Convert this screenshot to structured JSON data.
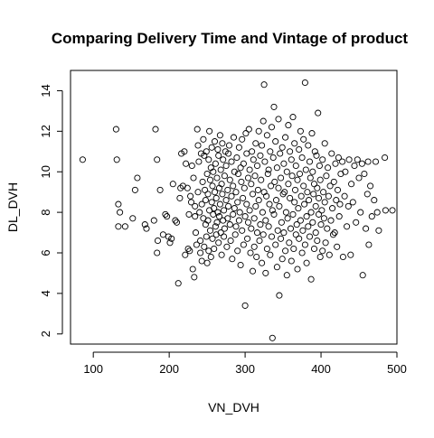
{
  "chart_data": {
    "type": "scatter",
    "title": "Comparing Delivery Time and Vintage of product",
    "xlabel": "VN_DVH",
    "ylabel": "DL_DVH",
    "xlim": [
      70,
      500
    ],
    "ylim": [
      1.5,
      15
    ],
    "x_ticks": [
      100,
      200,
      300,
      400,
      500
    ],
    "y_ticks": [
      2,
      4,
      6,
      8,
      10,
      12,
      14
    ],
    "grid": false,
    "legend": "none",
    "point_color": "#000000",
    "points": [
      [
        86,
        10.6
      ],
      [
        130,
        12.1
      ],
      [
        131,
        10.6
      ],
      [
        133,
        8.4
      ],
      [
        133,
        7.3
      ],
      [
        135,
        8.0
      ],
      [
        142,
        7.3
      ],
      [
        152,
        7.7
      ],
      [
        155,
        9.1
      ],
      [
        158,
        9.7
      ],
      [
        168,
        7.4
      ],
      [
        170,
        7.2
      ],
      [
        180,
        7.6
      ],
      [
        182,
        12.1
      ],
      [
        184,
        10.6
      ],
      [
        184,
        6.0
      ],
      [
        185,
        6.6
      ],
      [
        188,
        9.1
      ],
      [
        192,
        6.9
      ],
      [
        195,
        7.9
      ],
      [
        197,
        7.8
      ],
      [
        199,
        6.8
      ],
      [
        201,
        6.5
      ],
      [
        203,
        6.7
      ],
      [
        205,
        9.4
      ],
      [
        208,
        7.6
      ],
      [
        210,
        7.5
      ],
      [
        212,
        4.5
      ],
      [
        214,
        8.7
      ],
      [
        215,
        9.2
      ],
      [
        216,
        10.9
      ],
      [
        218,
        9.3
      ],
      [
        220,
        11.0
      ],
      [
        221,
        5.9
      ],
      [
        222,
        10.4
      ],
      [
        224,
        9.2
      ],
      [
        225,
        6.2
      ],
      [
        226,
        7.9
      ],
      [
        227,
        6.1
      ],
      [
        228,
        8.8
      ],
      [
        229,
        8.5
      ],
      [
        230,
        10.3
      ],
      [
        231,
        5.2
      ],
      [
        232,
        9.7
      ],
      [
        233,
        4.8
      ],
      [
        234,
        7.8
      ],
      [
        234,
        8.3
      ],
      [
        235,
        7.0
      ],
      [
        236,
        6.4
      ],
      [
        237,
        12.1
      ],
      [
        238,
        9.0
      ],
      [
        238,
        11.3
      ],
      [
        239,
        10.5
      ],
      [
        240,
        8.0
      ],
      [
        241,
        6.6
      ],
      [
        241,
        6.0
      ],
      [
        242,
        10.9
      ],
      [
        243,
        8.4
      ],
      [
        243,
        5.6
      ],
      [
        244,
        9.5
      ],
      [
        245,
        11.6
      ],
      [
        245,
        7.7
      ],
      [
        246,
        10.8
      ],
      [
        246,
        6.3
      ],
      [
        247,
        9.1
      ],
      [
        248,
        8.6
      ],
      [
        248,
        7.4
      ],
      [
        249,
        11.0
      ],
      [
        249,
        6.8
      ],
      [
        250,
        9.9
      ],
      [
        250,
        5.5
      ],
      [
        251,
        7.6
      ],
      [
        251,
        8.9
      ],
      [
        252,
        10.6
      ],
      [
        252,
        6.1
      ],
      [
        253,
        12.0
      ],
      [
        253,
        8.1
      ],
      [
        254,
        9.6
      ],
      [
        254,
        7.1
      ],
      [
        255,
        10.2
      ],
      [
        255,
        5.8
      ],
      [
        256,
        8.5
      ],
      [
        256,
        11.2
      ],
      [
        257,
        6.7
      ],
      [
        257,
        9.3
      ],
      [
        258,
        7.9
      ],
      [
        258,
        10.0
      ],
      [
        259,
        8.2
      ],
      [
        259,
        6.2
      ],
      [
        260,
        11.5
      ],
      [
        260,
        9.0
      ],
      [
        261,
        7.3
      ],
      [
        261,
        10.4
      ],
      [
        262,
        8.7
      ],
      [
        262,
        6.9
      ],
      [
        263,
        9.7
      ],
      [
        263,
        7.5
      ],
      [
        264,
        11.1
      ],
      [
        264,
        8.0
      ],
      [
        265,
        10.8
      ],
      [
        265,
        6.5
      ],
      [
        266,
        9.2
      ],
      [
        266,
        7.8
      ],
      [
        267,
        11.8
      ],
      [
        267,
        8.4
      ],
      [
        268,
        7.0
      ],
      [
        268,
        10.1
      ],
      [
        269,
        9.4
      ],
      [
        269,
        5.9
      ],
      [
        270,
        8.9
      ],
      [
        270,
        11.4
      ],
      [
        271,
        7.6
      ],
      [
        271,
        10.6
      ],
      [
        272,
        8.1
      ],
      [
        272,
        6.8
      ],
      [
        273,
        9.8
      ],
      [
        273,
        7.2
      ],
      [
        274,
        11.0
      ],
      [
        275,
        8.6
      ],
      [
        275,
        10.3
      ],
      [
        276,
        6.3
      ],
      [
        277,
        9.1
      ],
      [
        277,
        7.7
      ],
      [
        278,
        10.9
      ],
      [
        278,
        8.3
      ],
      [
        279,
        11.3
      ],
      [
        280,
        7.4
      ],
      [
        280,
        9.6
      ],
      [
        281,
        6.6
      ],
      [
        282,
        8.8
      ],
      [
        282,
        10.5
      ],
      [
        283,
        5.7
      ],
      [
        284,
        9.3
      ],
      [
        284,
        7.9
      ],
      [
        285,
        11.7
      ],
      [
        286,
        8.2
      ],
      [
        286,
        10.0
      ],
      [
        287,
        6.9
      ],
      [
        288,
        9.0
      ],
      [
        288,
        7.3
      ],
      [
        289,
        10.7
      ],
      [
        290,
        8.5
      ],
      [
        290,
        6.1
      ],
      [
        291,
        9.9
      ],
      [
        292,
        7.6
      ],
      [
        292,
        11.2
      ],
      [
        293,
        8.0
      ],
      [
        294,
        10.2
      ],
      [
        294,
        5.4
      ],
      [
        295,
        9.5
      ],
      [
        296,
        7.1
      ],
      [
        296,
        11.6
      ],
      [
        297,
        8.7
      ],
      [
        298,
        10.4
      ],
      [
        298,
        6.4
      ],
      [
        299,
        9.2
      ],
      [
        300,
        3.4
      ],
      [
        300,
        7.8
      ],
      [
        301,
        11.9
      ],
      [
        302,
        8.4
      ],
      [
        302,
        10.9
      ],
      [
        303,
        6.7
      ],
      [
        304,
        9.7
      ],
      [
        304,
        7.5
      ],
      [
        305,
        12.1
      ],
      [
        306,
        8.1
      ],
      [
        306,
        10.1
      ],
      [
        307,
        6.0
      ],
      [
        308,
        9.4
      ],
      [
        308,
        7.2
      ],
      [
        309,
        11.0
      ],
      [
        310,
        5.1
      ],
      [
        310,
        8.9
      ],
      [
        311,
        10.6
      ],
      [
        312,
        7.7
      ],
      [
        312,
        6.3
      ],
      [
        313,
        9.8
      ],
      [
        314,
        11.4
      ],
      [
        314,
        8.3
      ],
      [
        315,
        5.8
      ],
      [
        316,
        10.3
      ],
      [
        316,
        7.0
      ],
      [
        317,
        9.1
      ],
      [
        318,
        12.0
      ],
      [
        318,
        8.6
      ],
      [
        319,
        6.6
      ],
      [
        320,
        10.8
      ],
      [
        320,
        7.4
      ],
      [
        321,
        9.6
      ],
      [
        322,
        5.5
      ],
      [
        322,
        11.3
      ],
      [
        323,
        8.0
      ],
      [
        324,
        12.5
      ],
      [
        324,
        6.9
      ],
      [
        325,
        14.3
      ],
      [
        325,
        9.0
      ],
      [
        326,
        10.5
      ],
      [
        327,
        7.6
      ],
      [
        327,
        5.0
      ],
      [
        328,
        8.8
      ],
      [
        329,
        11.8
      ],
      [
        329,
        6.2
      ],
      [
        330,
        9.9
      ],
      [
        331,
        7.3
      ],
      [
        331,
        10.1
      ],
      [
        332,
        8.4
      ],
      [
        333,
        5.9
      ],
      [
        333,
        11.0
      ],
      [
        334,
        9.3
      ],
      [
        335,
        6.8
      ],
      [
        335,
        12.2
      ],
      [
        336,
        1.8
      ],
      [
        336,
        8.1
      ],
      [
        337,
        10.7
      ],
      [
        338,
        7.9
      ],
      [
        338,
        13.2
      ],
      [
        339,
        9.5
      ],
      [
        340,
        6.4
      ],
      [
        340,
        11.5
      ],
      [
        341,
        8.6
      ],
      [
        342,
        5.3
      ],
      [
        342,
        10.2
      ],
      [
        343,
        7.1
      ],
      [
        344,
        9.2
      ],
      [
        344,
        12.6
      ],
      [
        345,
        3.9
      ],
      [
        345,
        8.3
      ],
      [
        346,
        10.9
      ],
      [
        347,
        6.7
      ],
      [
        347,
        9.7
      ],
      [
        348,
        7.5
      ],
      [
        349,
        11.2
      ],
      [
        349,
        5.7
      ],
      [
        350,
        8.9
      ],
      [
        351,
        10.4
      ],
      [
        351,
        7.0
      ],
      [
        352,
        9.0
      ],
      [
        353,
        6.1
      ],
      [
        353,
        11.7
      ],
      [
        354,
        8.0
      ],
      [
        355,
        10.0
      ],
      [
        355,
        4.9
      ],
      [
        356,
        7.7
      ],
      [
        357,
        9.4
      ],
      [
        357,
        12.3
      ],
      [
        358,
        6.5
      ],
      [
        359,
        8.7
      ],
      [
        359,
        11.0
      ],
      [
        360,
        7.2
      ],
      [
        361,
        10.6
      ],
      [
        361,
        5.6
      ],
      [
        362,
        9.8
      ],
      [
        363,
        7.9
      ],
      [
        363,
        12.7
      ],
      [
        364,
        6.2
      ],
      [
        365,
        8.5
      ],
      [
        365,
        11.4
      ],
      [
        366,
        9.1
      ],
      [
        367,
        6.9
      ],
      [
        367,
        10.3
      ],
      [
        368,
        7.4
      ],
      [
        369,
        9.6
      ],
      [
        369,
        5.2
      ],
      [
        370,
        8.2
      ],
      [
        371,
        11.1
      ],
      [
        371,
        6.7
      ],
      [
        372,
        9.9
      ],
      [
        373,
        7.6
      ],
      [
        373,
        12.0
      ],
      [
        374,
        8.8
      ],
      [
        375,
        6.0
      ],
      [
        375,
        10.7
      ],
      [
        376,
        7.1
      ],
      [
        377,
        9.3
      ],
      [
        377,
        11.6
      ],
      [
        378,
        8.4
      ],
      [
        379,
        14.4
      ],
      [
        379,
        6.4
      ],
      [
        380,
        10.1
      ],
      [
        381,
        7.8
      ],
      [
        381,
        5.5
      ],
      [
        382,
        9.0
      ],
      [
        383,
        11.3
      ],
      [
        383,
        7.3
      ],
      [
        384,
        8.6
      ],
      [
        385,
        10.5
      ],
      [
        385,
        6.8
      ],
      [
        386,
        9.7
      ],
      [
        387,
        4.7
      ],
      [
        387,
        8.0
      ],
      [
        388,
        11.9
      ],
      [
        389,
        7.5
      ],
      [
        389,
        10.0
      ],
      [
        390,
        8.9
      ],
      [
        391,
        6.2
      ],
      [
        391,
        9.4
      ],
      [
        392,
        11.0
      ],
      [
        393,
        7.0
      ],
      [
        393,
        8.3
      ],
      [
        394,
        10.8
      ],
      [
        395,
        6.6
      ],
      [
        395,
        9.2
      ],
      [
        396,
        12.9
      ],
      [
        397,
        7.9
      ],
      [
        397,
        8.7
      ],
      [
        398,
        10.3
      ],
      [
        399,
        5.8
      ],
      [
        399,
        9.6
      ],
      [
        400,
        7.4
      ],
      [
        401,
        8.1
      ],
      [
        402,
        10.6
      ],
      [
        402,
        6.1
      ],
      [
        403,
        9.0
      ],
      [
        404,
        7.7
      ],
      [
        405,
        11.4
      ],
      [
        405,
        8.5
      ],
      [
        406,
        6.5
      ],
      [
        407,
        9.8
      ],
      [
        408,
        7.2
      ],
      [
        409,
        10.2
      ],
      [
        410,
        8.8
      ],
      [
        411,
        5.9
      ],
      [
        412,
        9.3
      ],
      [
        413,
        7.6
      ],
      [
        414,
        10.9
      ],
      [
        415,
        8.2
      ],
      [
        416,
        6.9
      ],
      [
        417,
        9.5
      ],
      [
        418,
        7.0
      ],
      [
        419,
        10.4
      ],
      [
        420,
        8.6
      ],
      [
        421,
        6.3
      ],
      [
        422,
        9.1
      ],
      [
        423,
        10.7
      ],
      [
        424,
        7.8
      ],
      [
        425,
        8.4
      ],
      [
        426,
        9.9
      ],
      [
        428,
        10.5
      ],
      [
        429,
        5.8
      ],
      [
        431,
        8.8
      ],
      [
        432,
        10.0
      ],
      [
        434,
        7.3
      ],
      [
        436,
        8.3
      ],
      [
        437,
        10.6
      ],
      [
        439,
        5.9
      ],
      [
        440,
        9.4
      ],
      [
        442,
        8.5
      ],
      [
        444,
        10.3
      ],
      [
        446,
        7.5
      ],
      [
        448,
        10.6
      ],
      [
        450,
        9.7
      ],
      [
        452,
        8.0
      ],
      [
        454,
        10.4
      ],
      [
        455,
        4.9
      ],
      [
        457,
        9.9
      ],
      [
        459,
        7.2
      ],
      [
        461,
        8.9
      ],
      [
        462,
        10.5
      ],
      [
        463,
        6.4
      ],
      [
        465,
        9.3
      ],
      [
        467,
        7.8
      ],
      [
        470,
        8.6
      ],
      [
        472,
        10.5
      ],
      [
        474,
        8.0
      ],
      [
        476,
        7.1
      ],
      [
        484,
        10.7
      ],
      [
        485,
        8.1
      ],
      [
        494,
        8.1
      ]
    ]
  }
}
